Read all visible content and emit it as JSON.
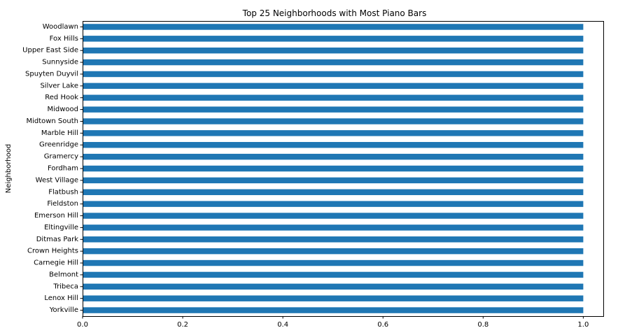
{
  "chart_data": {
    "type": "bar",
    "orientation": "horizontal",
    "title": "Top 25 Neighborhoods with Most Piano Bars",
    "xlabel": "",
    "ylabel": "Neighborhood",
    "xlim": [
      0,
      1.04
    ],
    "xticks": [
      "0.0",
      "0.2",
      "0.4",
      "0.6",
      "0.8",
      "1.0"
    ],
    "xtick_values": [
      0,
      0.2,
      0.4,
      0.6,
      0.8,
      1.0
    ],
    "grid": false,
    "bar_color": "#1f77b4",
    "categories": [
      "Woodlawn",
      "Fox Hills",
      "Upper East Side",
      "Sunnyside",
      "Spuyten Duyvil",
      "Silver Lake",
      "Red Hook",
      "Midwood",
      "Midtown South",
      "Marble Hill",
      "Greenridge",
      "Gramercy",
      "Fordham",
      "West Village",
      "Flatbush",
      "Fieldston",
      "Emerson Hill",
      "Eltingville",
      "Ditmas Park",
      "Crown Heights",
      "Carnegie Hill",
      "Belmont",
      "Tribeca",
      "Lenox Hill",
      "Yorkville"
    ],
    "values": [
      1,
      1,
      1,
      1,
      1,
      1,
      1,
      1,
      1,
      1,
      1,
      1,
      1,
      1,
      1,
      1,
      1,
      1,
      1,
      1,
      1,
      1,
      1,
      1,
      1
    ]
  }
}
